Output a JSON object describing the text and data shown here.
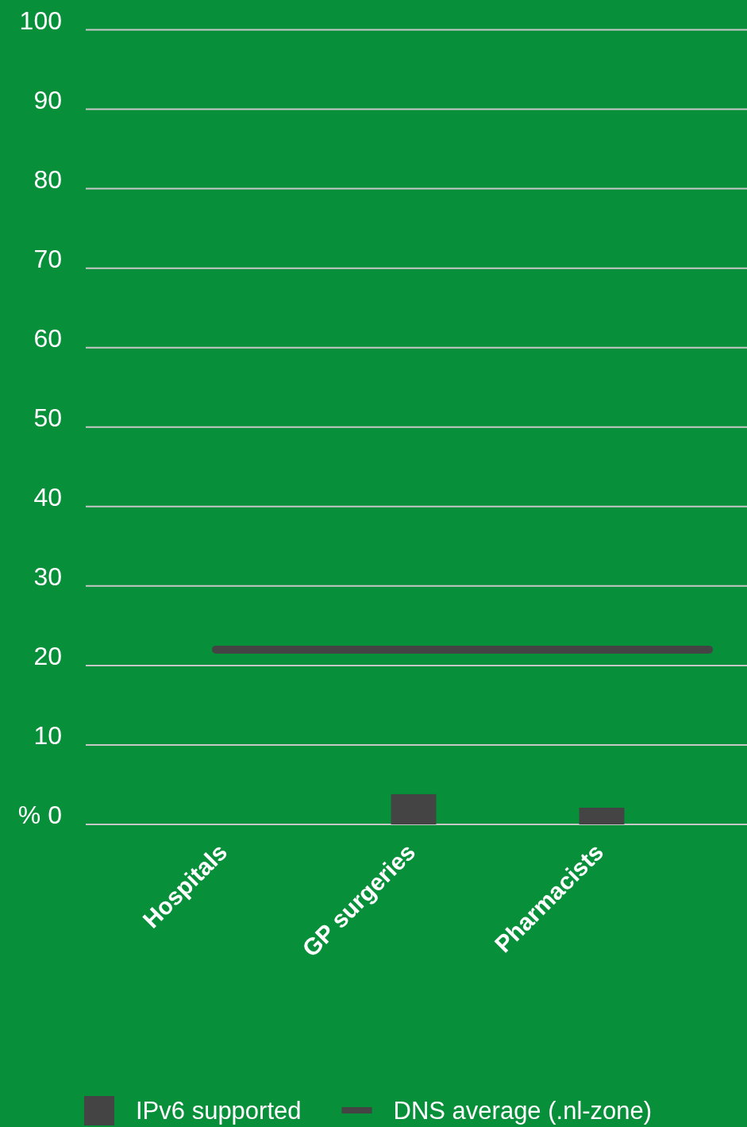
{
  "chart_data": {
    "type": "bar",
    "categories": [
      "Hospitals",
      "GP surgeries",
      "Pharmacists"
    ],
    "series": [
      {
        "name": "IPv6 supported",
        "color": "#444444",
        "values": [
          0,
          3.8,
          2.1
        ]
      }
    ],
    "ylim": [
      0,
      100
    ],
    "yticks": [
      {
        "value": 0,
        "label": "% 0"
      },
      10,
      20,
      30,
      40,
      50,
      60,
      70,
      80,
      90,
      100
    ],
    "grid": "y",
    "ref_lines": [
      {
        "axis": "y",
        "value": 22,
        "label": "DNS average (.nl-zone)",
        "color": "#444444"
      }
    ],
    "legend": "bottom"
  }
}
